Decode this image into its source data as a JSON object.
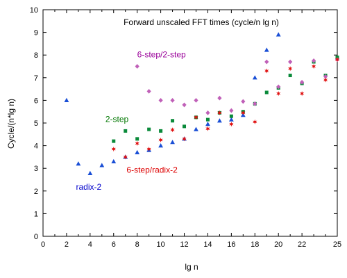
{
  "chart_data": {
    "type": "scatter",
    "title": "Forward unscaled FFT times (cycle/n lg n)",
    "xlabel": "lg n",
    "ylabel": "Cycle/(n*lg n)",
    "xlim": [
      0,
      25
    ],
    "ylim": [
      0,
      10
    ],
    "x_ticks": [
      0,
      2,
      4,
      6,
      8,
      10,
      12,
      14,
      16,
      18,
      20,
      22,
      25
    ],
    "x_minor_ticks": [
      1,
      3,
      5,
      7,
      9,
      11,
      13,
      15,
      17,
      19,
      21,
      23,
      24
    ],
    "y_ticks": [
      0,
      1,
      2,
      3,
      4,
      5,
      6,
      7,
      8,
      9,
      10
    ],
    "grid": false,
    "legend": "none",
    "annotations": [
      {
        "text": "radix-2",
        "x": 2.8,
        "y": 2.05,
        "color": "#0000cc"
      },
      {
        "text": "2-step",
        "x": 5.3,
        "y": 5.05,
        "color": "#007700"
      },
      {
        "text": "6-step/2-step",
        "x": 8.0,
        "y": 7.9,
        "color": "#990099"
      },
      {
        "text": "6-step/radix-2",
        "x": 7.1,
        "y": 2.8,
        "color": "#dd0000"
      }
    ],
    "series": [
      {
        "name": "radix-2",
        "color": "#1a4fd6",
        "marker": "triangle",
        "x": [
          2,
          3,
          4,
          5,
          6,
          7,
          8,
          9,
          10,
          11,
          12,
          13,
          14,
          15,
          16,
          17,
          18,
          19,
          20
        ],
        "y": [
          6.0,
          3.2,
          2.78,
          3.13,
          3.3,
          3.5,
          3.7,
          3.8,
          4.0,
          4.15,
          4.3,
          4.72,
          4.95,
          5.1,
          5.15,
          5.35,
          7.0,
          8.22,
          8.9
        ]
      },
      {
        "name": "2-step",
        "color": "#0a8a3a",
        "marker": "square",
        "x": [
          6,
          7,
          8,
          9,
          10,
          11,
          12,
          13,
          14,
          15,
          16,
          17,
          18,
          19,
          20,
          21,
          22,
          23,
          24,
          25
        ],
        "y": [
          4.2,
          4.65,
          4.3,
          4.72,
          4.65,
          5.1,
          4.85,
          5.25,
          5.15,
          5.45,
          5.3,
          5.5,
          5.85,
          6.35,
          6.55,
          7.1,
          6.75,
          7.7,
          7.1,
          7.9
        ]
      },
      {
        "name": "6-step/2-step",
        "color": "#c060b8",
        "marker": "diamond",
        "x": [
          8,
          9,
          10,
          11,
          12,
          13,
          14,
          15,
          16,
          17,
          18,
          19,
          20,
          21,
          22,
          23,
          24,
          25
        ],
        "y": [
          7.5,
          6.4,
          6.0,
          6.0,
          5.8,
          6.0,
          5.45,
          6.1,
          5.55,
          5.95,
          5.85,
          7.7,
          6.6,
          7.7,
          6.8,
          7.75,
          7.05,
          7.8
        ]
      },
      {
        "name": "6-step/radix-2",
        "color": "#e01010",
        "marker": "star",
        "x": [
          6,
          7,
          8,
          9,
          10,
          11,
          12,
          13,
          14,
          15,
          16,
          17,
          18,
          19,
          20,
          21,
          22,
          23,
          24,
          25
        ],
        "y": [
          3.85,
          3.5,
          4.1,
          3.85,
          4.25,
          4.7,
          4.3,
          5.25,
          4.75,
          5.45,
          4.95,
          5.45,
          5.05,
          7.3,
          6.3,
          7.4,
          6.3,
          7.5,
          6.9,
          7.8
        ]
      }
    ]
  }
}
